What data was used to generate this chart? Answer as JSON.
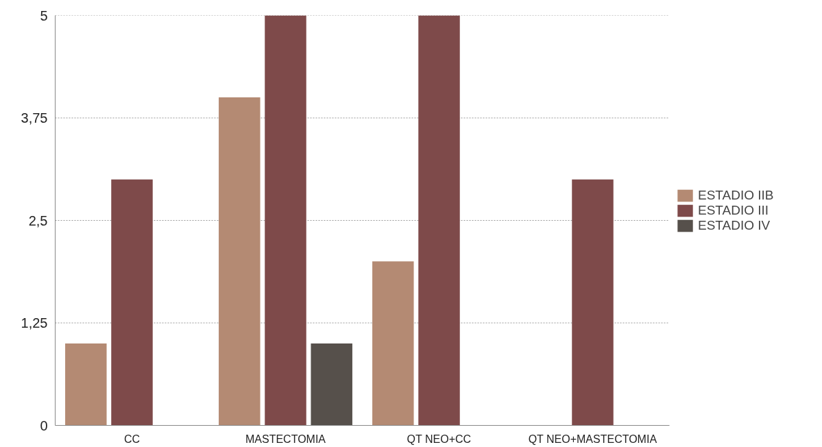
{
  "chart_data": {
    "type": "bar",
    "categories": [
      "CC",
      "MASTECTOMIA",
      "QT NEO+CC",
      "QT NEO+MASTECTOMIA"
    ],
    "series": [
      {
        "name": "ESTADIO IIB",
        "color": "#b48a73",
        "values": [
          1,
          4,
          2,
          null
        ]
      },
      {
        "name": "ESTADIO III",
        "color": "#7e4a4a",
        "values": [
          3,
          5,
          5,
          3
        ]
      },
      {
        "name": "ESTADIO IV",
        "color": "#56504b",
        "values": [
          null,
          1,
          null,
          null
        ]
      }
    ],
    "ylim": [
      0,
      5
    ],
    "yticks": [
      0,
      {
        "value": 1.25,
        "label": "1,25"
      },
      {
        "value": 2.5,
        "label": "2,5"
      },
      {
        "value": 3.75,
        "label": "3,75"
      },
      5
    ],
    "grid": "y",
    "legend": "right"
  }
}
